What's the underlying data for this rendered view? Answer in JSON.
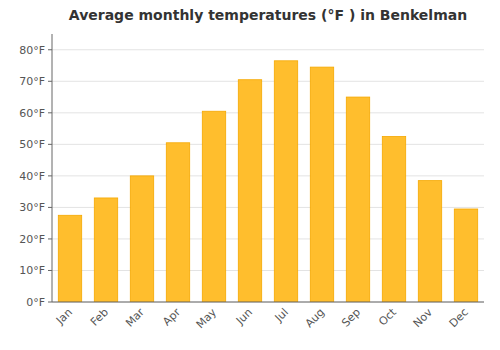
{
  "chart_data": {
    "type": "bar",
    "title": "Average monthly temperatures (°F ) in Benkelman",
    "categories": [
      "Jan",
      "Feb",
      "Mar",
      "Apr",
      "May",
      "Jun",
      "Jul",
      "Aug",
      "Sep",
      "Oct",
      "Nov",
      "Dec"
    ],
    "values": [
      27.5,
      33.0,
      40.0,
      50.5,
      60.5,
      70.5,
      76.5,
      74.5,
      65.0,
      52.5,
      38.5,
      29.5
    ],
    "color": "#FFBE2D",
    "ylim": [
      0,
      85
    ],
    "yticks": [
      {
        "value": 0,
        "label": "0°F"
      },
      {
        "value": 10,
        "label": "10°F"
      },
      {
        "value": 20,
        "label": "20°F"
      },
      {
        "value": 30,
        "label": "30°F"
      },
      {
        "value": 40,
        "label": "40°F"
      },
      {
        "value": 50,
        "label": "50°F"
      },
      {
        "value": 60,
        "label": "60°F"
      },
      {
        "value": 70,
        "label": "70°F"
      },
      {
        "value": 80,
        "label": "80°F"
      }
    ],
    "grid": true
  }
}
